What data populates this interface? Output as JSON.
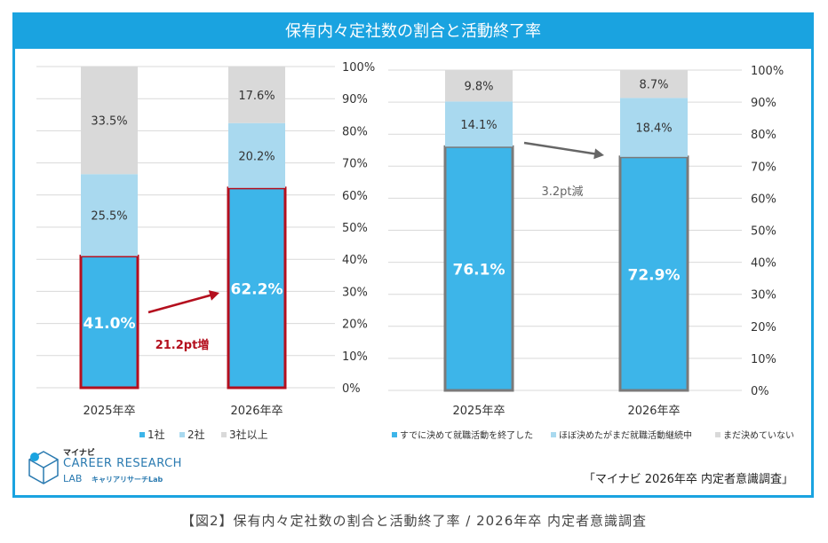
{
  "title": "保有内々定社数の割合と活動終了率",
  "caption": "【図2】保有内々定社数の割合と活動終了率 / 2026年卒 内定者意識調査",
  "source": "「マイナビ 2026年卒 内定者意識調査」",
  "logo": {
    "brand_small": "マイナビ",
    "brand_main": "CAREER RESEARCH",
    "brand_sub": "LAB",
    "brand_sub_jp": "キャリアリサーチLab"
  },
  "colors": {
    "accent": "#1aa3e0",
    "dark_blue": "#3db5e9",
    "light_blue": "#a9d9ef",
    "gray": "#d9d9d9",
    "highlight_red": "#b40f1e",
    "highlight_gray": "#7a7a7a"
  },
  "chart_data": [
    {
      "type": "bar",
      "stacked": true,
      "categories": [
        "2025年卒",
        "2026年卒"
      ],
      "series": [
        {
          "name": "1社",
          "values": [
            41.0,
            62.2
          ]
        },
        {
          "name": "2社",
          "values": [
            25.5,
            20.2
          ]
        },
        {
          "name": "3社以上",
          "values": [
            33.5,
            17.6
          ]
        }
      ],
      "ylim": [
        0,
        100
      ],
      "yticks": [
        "0%",
        "10%",
        "20%",
        "30%",
        "40%",
        "50%",
        "60%",
        "70%",
        "80%",
        "90%",
        "100%"
      ],
      "grid": true,
      "legend_position": "bottom",
      "annotation": "21.2pt増"
    },
    {
      "type": "bar",
      "stacked": true,
      "categories": [
        "2025年卒",
        "2026年卒"
      ],
      "series": [
        {
          "name": "すでに決めて就職活動を終了した",
          "values": [
            76.1,
            72.9
          ]
        },
        {
          "name": "ほぼ決めたがまだ就職活動継続中",
          "values": [
            14.1,
            18.4
          ]
        },
        {
          "name": "まだ決めていない",
          "values": [
            9.8,
            8.7
          ]
        }
      ],
      "ylim": [
        0,
        100
      ],
      "yticks": [
        "0%",
        "10%",
        "20%",
        "30%",
        "40%",
        "50%",
        "60%",
        "70%",
        "80%",
        "90%",
        "100%"
      ],
      "grid": true,
      "legend_position": "bottom",
      "annotation": "3.2pt減"
    }
  ]
}
